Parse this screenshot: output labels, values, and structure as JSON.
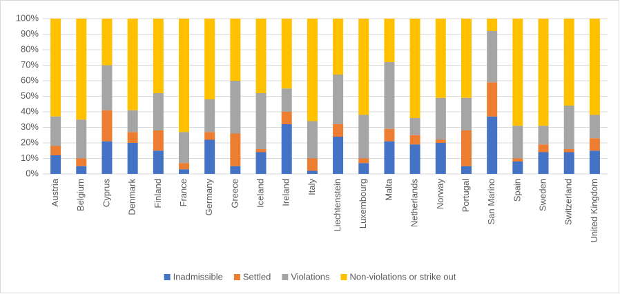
{
  "chart_data": {
    "type": "stacked_bar_100",
    "categories": [
      "Austria",
      "Belgium",
      "Cyprus",
      "Denmark",
      "Finland",
      "France",
      "Germany",
      "Greece",
      "Iceland",
      "Ireland",
      "Italy",
      "Liechtenstein",
      "Luxembourg",
      "Malta",
      "Netherlands",
      "Norway",
      "Portugal",
      "San Marino",
      "Spain",
      "Sweden",
      "Switzerland",
      "United Kingdom"
    ],
    "series": [
      {
        "name": "Inadmissible",
        "color": "#4472c4",
        "values": [
          12,
          5,
          21,
          20,
          15,
          3,
          22,
          5,
          14,
          32,
          2,
          24,
          7,
          21,
          19,
          20,
          5,
          37,
          8,
          14,
          14,
          15
        ]
      },
      {
        "name": "Settled",
        "color": "#ed7d31",
        "values": [
          6,
          5,
          20,
          7,
          13,
          4,
          5,
          21,
          2,
          8,
          8,
          8,
          3,
          8,
          6,
          2,
          23,
          22,
          2,
          5,
          2,
          8
        ]
      },
      {
        "name": "Violations",
        "color": "#a5a5a5",
        "values": [
          19,
          25,
          29,
          14,
          24,
          20,
          21,
          34,
          36,
          15,
          24,
          32,
          28,
          43,
          11,
          27,
          21,
          33,
          21,
          12,
          28,
          15
        ]
      },
      {
        "name": "Non-violations or strike out",
        "color": "#ffc000",
        "values": [
          63,
          65,
          30,
          59,
          48,
          73,
          52,
          40,
          48,
          45,
          66,
          36,
          62,
          28,
          64,
          51,
          51,
          8,
          69,
          69,
          56,
          62
        ]
      }
    ],
    "ylim": [
      0,
      100
    ],
    "yticks": [
      {
        "value": 0,
        "label": "0%"
      },
      {
        "value": 10,
        "label": "10%"
      },
      {
        "value": 20,
        "label": "20%"
      },
      {
        "value": 30,
        "label": "30%"
      },
      {
        "value": 40,
        "label": "40%"
      },
      {
        "value": 50,
        "label": "50%"
      },
      {
        "value": 60,
        "label": "60%"
      },
      {
        "value": 70,
        "label": "70%"
      },
      {
        "value": 80,
        "label": "80%"
      },
      {
        "value": 90,
        "label": "90%"
      },
      {
        "value": 100,
        "label": "100%"
      }
    ],
    "grid": true,
    "legend": "bottom"
  }
}
